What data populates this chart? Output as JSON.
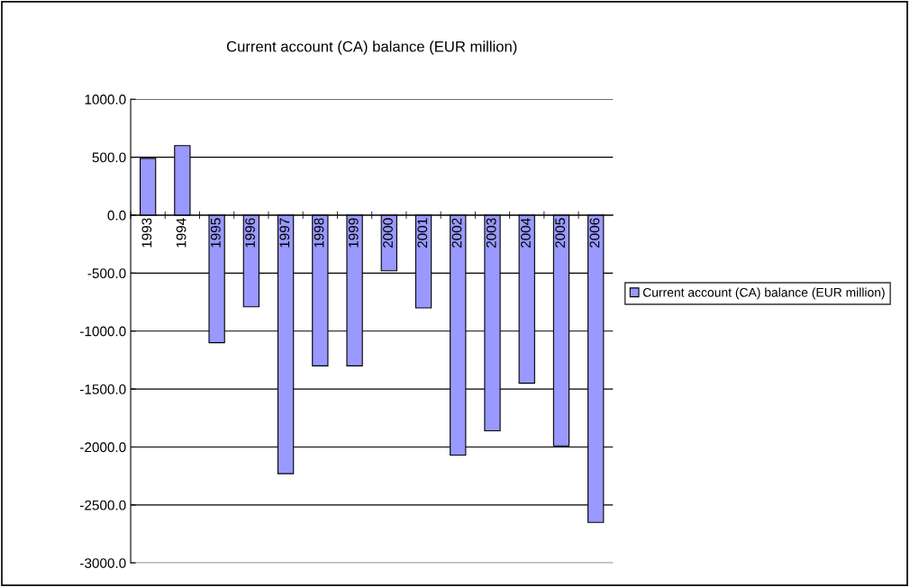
{
  "chart_data": {
    "type": "bar",
    "title": "Current account (CA) balance (EUR million)",
    "categories": [
      "1993",
      "1994",
      "1995",
      "1996",
      "1997",
      "1998",
      "1999",
      "2000",
      "2001",
      "2002",
      "2003",
      "2004",
      "2005",
      "2006"
    ],
    "series": [
      {
        "name": "Current account (CA) balance (EUR million)",
        "color": "#9999ff",
        "values": [
          490,
          600,
          -1100,
          -790,
          -2230,
          -1300,
          -1300,
          -480,
          -800,
          -2070,
          -1860,
          -1450,
          -1990,
          -2650
        ]
      }
    ],
    "ylim": [
      -3000,
      1000
    ],
    "yticks": [
      {
        "value": -3000,
        "label": "-3000.0"
      },
      {
        "value": -2500,
        "label": "-2500.0"
      },
      {
        "value": -2000,
        "label": "-2000.0"
      },
      {
        "value": -1500,
        "label": "-1500.0"
      },
      {
        "value": -1000,
        "label": "-1000.0"
      },
      {
        "value": -500,
        "label": "-500.0"
      },
      {
        "value": 0,
        "label": "0.0"
      },
      {
        "value": 500,
        "label": "500.0"
      },
      {
        "value": 1000,
        "label": "1000.0"
      }
    ],
    "grid": "y",
    "legend": "right"
  }
}
